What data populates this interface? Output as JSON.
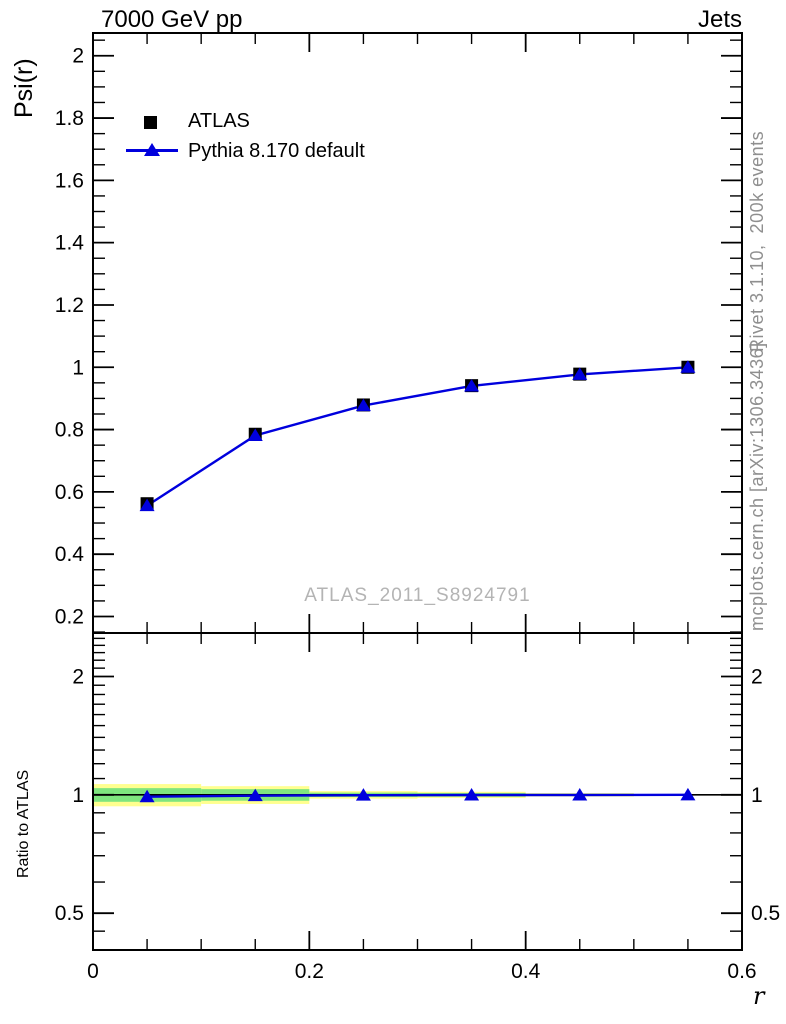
{
  "titles": {
    "left": "7000 GeV pp",
    "right": "Jets"
  },
  "side_texts": {
    "top": "Rivet 3.1.10,  200k events",
    "bottom": "mcplots.cern.ch [arXiv:1306.3436]"
  },
  "colors": {
    "mc_blue": "#0000dd",
    "data_black": "#000000",
    "band_yellow": "#ffff8f",
    "band_green": "#7fe57f",
    "watermark_gray": "#b4b4b4",
    "side_text_gray": "#8f8f8f",
    "axis_black": "#000000"
  },
  "chart_data": {
    "type": "line",
    "title": "7000 GeV pp",
    "title_right": "Jets",
    "xlabel": "r",
    "xrange": [
      0,
      0.6
    ],
    "xticks": {
      "major": [
        0,
        0.2,
        0.4,
        0.6
      ],
      "labels": [
        "0",
        "0.2",
        "0.4",
        "0.6"
      ],
      "minor": [
        0.05,
        0.1,
        0.15,
        0.25,
        0.3,
        0.35,
        0.45,
        0.5,
        0.55
      ]
    },
    "main_panel": {
      "ylabel": "Psi(r)",
      "yscale": "linear",
      "yrange": [
        0.147,
        2.073
      ],
      "yticks": {
        "major": [
          0.2,
          0.4,
          0.6,
          0.8,
          1.0,
          1.2,
          1.4,
          1.6,
          1.8,
          2.0
        ],
        "labels": [
          "0.2",
          "0.4",
          "0.6",
          "0.8",
          "1",
          "1.2",
          "1.4",
          "1.6",
          "1.8",
          "2"
        ],
        "minor": [
          0.15,
          0.25,
          0.3,
          0.35,
          0.45,
          0.5,
          0.55,
          0.65,
          0.7,
          0.75,
          0.85,
          0.9,
          0.95,
          1.05,
          1.1,
          1.15,
          1.25,
          1.3,
          1.35,
          1.45,
          1.5,
          1.55,
          1.65,
          1.7,
          1.75,
          1.85,
          1.9,
          1.95,
          2.05
        ]
      },
      "watermark": "ATLAS_2011_S8924791",
      "series": [
        {
          "name": "ATLAS",
          "marker": "square",
          "color": "#000000",
          "line": false,
          "x": [
            0.05,
            0.15,
            0.25,
            0.35,
            0.45,
            0.55
          ],
          "y": [
            0.562,
            0.785,
            0.879,
            0.941,
            0.978,
            1.0
          ]
        },
        {
          "name": "Pythia 8.170 default",
          "marker": "triangle",
          "color": "#0000dd",
          "line": true,
          "x": [
            0.05,
            0.15,
            0.25,
            0.35,
            0.45,
            0.55
          ],
          "y": [
            0.556,
            0.781,
            0.877,
            0.94,
            0.977,
            1.0
          ]
        }
      ]
    },
    "ratio_panel": {
      "ylabel": "Ratio to ATLAS",
      "yscale": "log",
      "yrange": [
        0.403,
        2.58
      ],
      "yticks": {
        "major": [
          0.5,
          1,
          2
        ],
        "labels": [
          "0.5",
          "1",
          "2"
        ],
        "minor": [
          0.45,
          0.6,
          0.7,
          0.8,
          0.9,
          1.1,
          1.2,
          1.3,
          1.4,
          1.5,
          1.6,
          1.7,
          1.8,
          1.9,
          2.1,
          2.2,
          2.3,
          2.4,
          2.5
        ]
      },
      "reference_line": 1,
      "points": {
        "x": [
          0.05,
          0.15,
          0.25,
          0.35,
          0.45,
          0.55
        ],
        "y": [
          0.989,
          0.995,
          0.998,
          0.999,
          0.999,
          1.0
        ]
      },
      "bands": {
        "bin_edges": [
          0,
          0.1,
          0.2,
          0.3,
          0.4,
          0.5,
          0.6
        ],
        "yellow_halfwidth": [
          0.065,
          0.052,
          0.022,
          0.018,
          0.01,
          0.004
        ],
        "green_halfwidth": [
          0.04,
          0.034,
          0.013,
          0.011,
          0.006,
          0.002
        ]
      }
    }
  }
}
